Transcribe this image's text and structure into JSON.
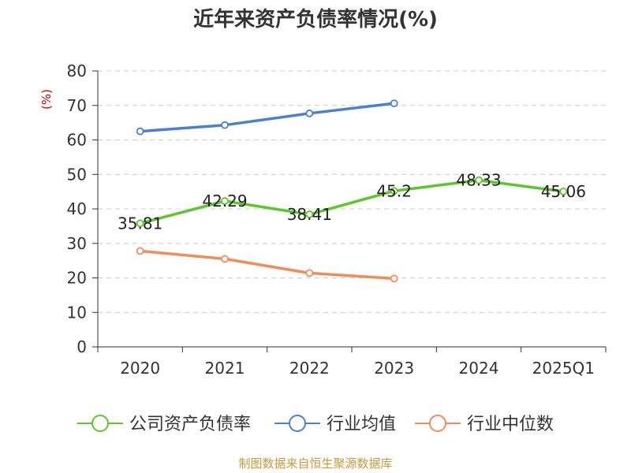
{
  "title": "近年来资产负债率情况(%)",
  "source": "制图数据来自恒生聚源数据库",
  "chart_data": {
    "type": "line",
    "title": "近年来资产负债率情况(%)",
    "y_unit": "(%)",
    "categories": [
      "2020",
      "2021",
      "2022",
      "2023",
      "2024",
      "2025Q1"
    ],
    "ylim": [
      0,
      80
    ],
    "yticks": [
      0,
      10,
      20,
      30,
      40,
      50,
      60,
      70,
      80
    ],
    "grid": true,
    "legend_position": "bottom",
    "series": [
      {
        "name": "公司资产负债率",
        "color": "#5ec62d",
        "values": [
          35.81,
          42.29,
          38.41,
          45.2,
          48.33,
          45.06
        ],
        "data_labels": [
          "35.81",
          "42.29",
          "38.41",
          "45.2",
          "48.33",
          "45.06"
        ]
      },
      {
        "name": "行业均值",
        "color": "#4a7fd6",
        "values": [
          62.5,
          64.3,
          67.7,
          70.6,
          null,
          null
        ]
      },
      {
        "name": "行业中位数",
        "color": "#f28c5b",
        "values": [
          27.8,
          25.5,
          21.4,
          19.8,
          null,
          null
        ]
      }
    ]
  }
}
